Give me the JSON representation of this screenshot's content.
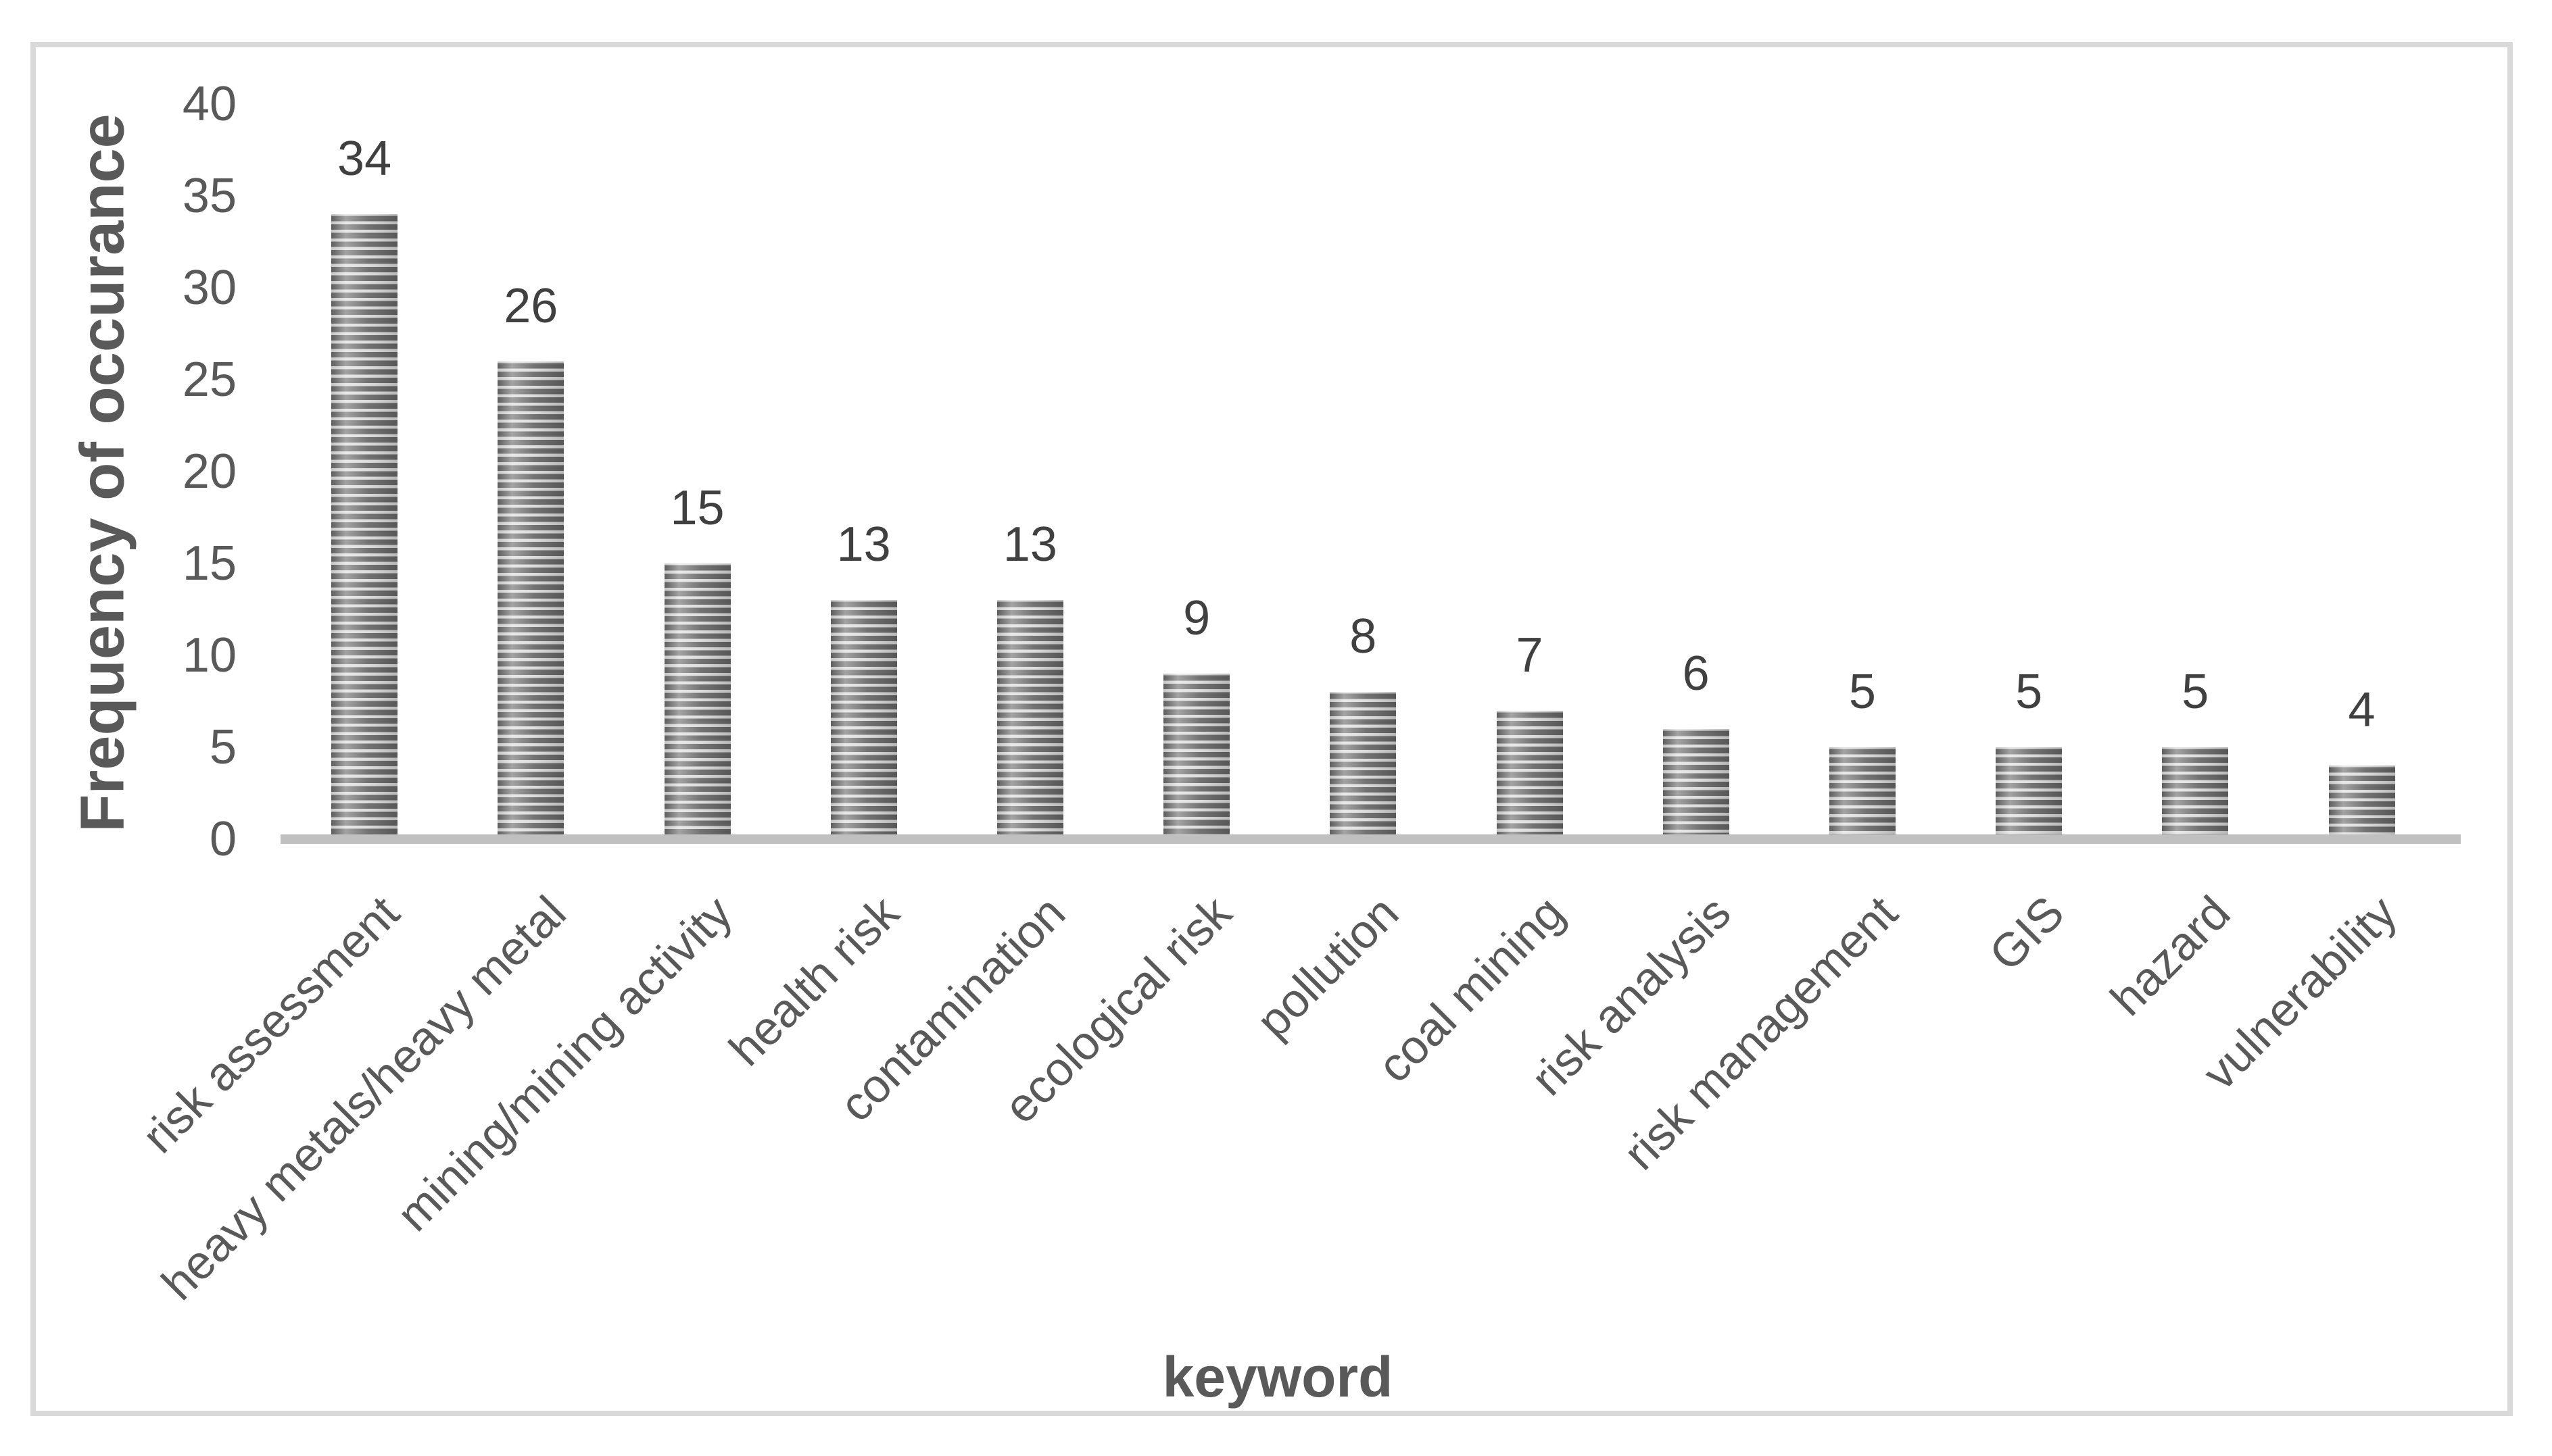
{
  "figure": {
    "background": "#ffffff",
    "frame_color": "#d9d9d9"
  },
  "chart_data": {
    "type": "bar",
    "title": "",
    "xlabel": "keyword",
    "ylabel": "Frequency of occurance",
    "categories": [
      "risk assessment",
      "heavy metals/heavy metal",
      "mining/mining activity",
      "health risk",
      "contamination",
      "ecological risk",
      "pollution",
      "coal mining",
      "risk analysis",
      "risk management",
      "GIS",
      "hazard",
      "vulnerability"
    ],
    "values": [
      34,
      26,
      15,
      13,
      13,
      9,
      8,
      7,
      6,
      5,
      5,
      5,
      4
    ],
    "value_labels_shown": true,
    "ylim": [
      0,
      40
    ],
    "yticks": [
      0,
      5,
      10,
      15,
      20,
      25,
      30,
      35,
      40
    ],
    "grid": "off",
    "legend": "none",
    "x_label_rotation_deg": 45,
    "bar_style": {
      "pattern": "horizontal-stripes",
      "stripe_dark": "#676767",
      "stripe_light": "#dadada"
    },
    "axis_line_color": "#c0c0c0",
    "tick_label_color": "#595959",
    "value_label_color": "#404040"
  }
}
